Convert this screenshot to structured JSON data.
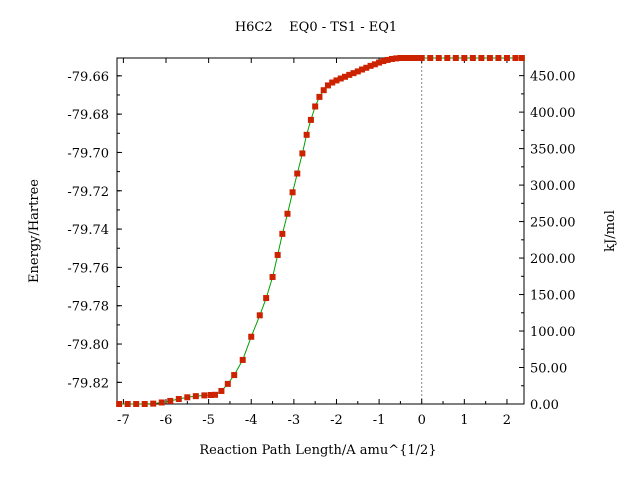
{
  "chart_data": {
    "type": "line",
    "title": "H6C2    EQ0 - TS1 - EQ1",
    "xlabel": "Reaction Path Length/A amu^{1/2}",
    "ylabel_left": "Energy/Hartree",
    "ylabel_right": "kJ/mol",
    "xlim": [
      -7.15,
      2.4
    ],
    "ylim": [
      -79.8313,
      -79.6507
    ],
    "xticks": [
      -7,
      -6,
      -5,
      -4,
      -3,
      -2,
      -1,
      0,
      1,
      2
    ],
    "xtick_labels": [
      "-7",
      "-6",
      "-5",
      "-4",
      "-3",
      "-2",
      "-1",
      "0",
      "1",
      "2"
    ],
    "yticks_left": [
      -79.82,
      -79.8,
      -79.78,
      -79.76,
      -79.74,
      -79.72,
      -79.7,
      -79.68,
      -79.66
    ],
    "ytick_labels_left": [
      "-79.82",
      "-79.80",
      "-79.78",
      "-79.76",
      "-79.74",
      "-79.72",
      "-79.70",
      "-79.68",
      "-79.66"
    ],
    "right_axis_zero_hartree": -79.8313,
    "hartree_to_kj_mol": 2625.5,
    "yticks_right": [
      0,
      50,
      100,
      150,
      200,
      250,
      300,
      350,
      400,
      450
    ],
    "ytick_labels_right": [
      "0.00",
      "50.00",
      "100.00",
      "150.00",
      "200.00",
      "250.00",
      "300.00",
      "350.00",
      "400.00",
      "450.00"
    ],
    "ts_marker_x": 0,
    "line_color": "#00a000",
    "marker_color": "#cc2200",
    "series": [
      {
        "x": [
          -7.1,
          -6.9,
          -6.7,
          -6.5,
          -6.3,
          -6.1,
          -5.9,
          -5.7,
          -5.5,
          -5.3,
          -5.1,
          -4.95,
          -4.85,
          -4.7,
          -4.55,
          -4.4,
          -4.2,
          -4.0,
          -3.8,
          -3.65,
          -3.5,
          -3.38,
          -3.27,
          -3.15,
          -3.03,
          -2.92,
          -2.8,
          -2.7,
          -2.6,
          -2.5,
          -2.4,
          -2.3,
          -2.2,
          -2.1,
          -2.0,
          -1.9,
          -1.8,
          -1.7,
          -1.6,
          -1.5,
          -1.4,
          -1.3,
          -1.2,
          -1.1,
          -1.0,
          -0.9,
          -0.8,
          -0.7,
          -0.6,
          -0.5,
          -0.4,
          -0.3,
          -0.2,
          -0.1,
          0.0,
          0.2,
          0.4,
          0.6,
          0.8,
          1.0,
          1.2,
          1.4,
          1.6,
          1.8,
          2.0,
          2.2,
          2.35
        ],
        "y": [
          -79.8313,
          -79.8313,
          -79.8313,
          -79.8313,
          -79.8311,
          -79.8305,
          -79.8297,
          -79.8287,
          -79.8278,
          -79.8272,
          -79.8268,
          -79.8266,
          -79.8265,
          -79.8245,
          -79.8208,
          -79.8162,
          -79.8083,
          -79.7962,
          -79.785,
          -79.776,
          -79.765,
          -79.7535,
          -79.7425,
          -79.732,
          -79.7208,
          -79.711,
          -79.7005,
          -79.6908,
          -79.683,
          -79.676,
          -79.671,
          -79.6675,
          -79.665,
          -79.6635,
          -79.6624,
          -79.6614,
          -79.6605,
          -79.6595,
          -79.6586,
          -79.6577,
          -79.6567,
          -79.6558,
          -79.6548,
          -79.654,
          -79.6531,
          -79.6523,
          -79.6517,
          -79.6512,
          -79.6509,
          -79.6507,
          -79.6507,
          -79.6507,
          -79.6507,
          -79.6507,
          -79.6507,
          -79.6507,
          -79.6507,
          -79.6507,
          -79.6507,
          -79.6507,
          -79.6507,
          -79.6507,
          -79.6507,
          -79.6507,
          -79.6507,
          -79.6507,
          -79.6507
        ]
      }
    ]
  }
}
